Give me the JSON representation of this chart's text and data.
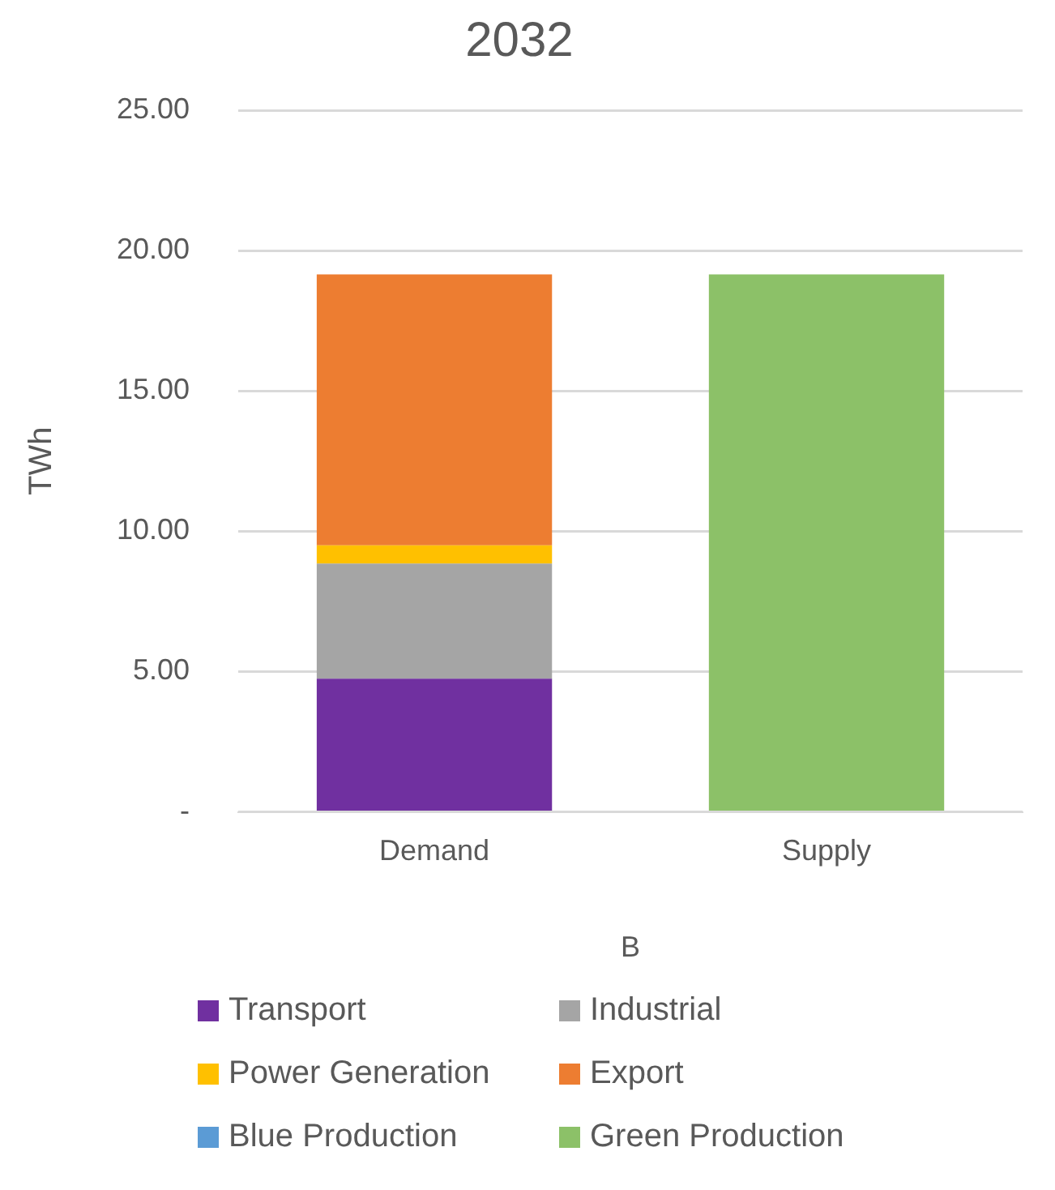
{
  "chart_data": {
    "type": "bar",
    "title": "2032",
    "ylabel": "TWh",
    "xlabel": "B",
    "categories": [
      "Demand",
      "Supply"
    ],
    "series": [
      {
        "name": "Transport",
        "color": "#7030a0",
        "values": [
          4.75,
          null
        ]
      },
      {
        "name": "Industrial",
        "color": "#a5a5a5",
        "values": [
          4.1,
          null
        ]
      },
      {
        "name": "Power Generation",
        "color": "#ffc000",
        "values": [
          0.65,
          null
        ]
      },
      {
        "name": "Export",
        "color": "#ed7d31",
        "values": [
          9.65,
          null
        ]
      },
      {
        "name": "Blue Production",
        "color": "#5b9bd5",
        "values": [
          null,
          0
        ]
      },
      {
        "name": "Green Production",
        "color": "#8cc168",
        "values": [
          null,
          19.15
        ]
      }
    ],
    "stacked": true,
    "ylim": [
      0,
      25
    ],
    "yticks": [
      {
        "value": 0,
        "label": "-"
      },
      {
        "value": 5,
        "label": "5.00"
      },
      {
        "value": 10,
        "label": "10.00"
      },
      {
        "value": 15,
        "label": "15.00"
      },
      {
        "value": 20,
        "label": "20.00"
      },
      {
        "value": 25,
        "label": "25.00"
      }
    ],
    "grid": "y",
    "legend": "bottom"
  }
}
